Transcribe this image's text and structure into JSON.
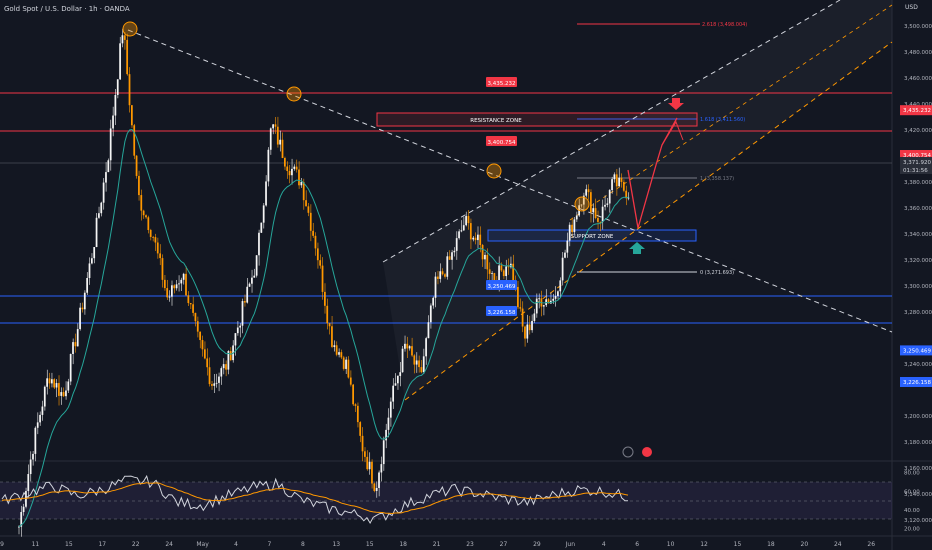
{
  "header": {
    "title": "Gold Spot / U.S. Dollar · 1h · OANDA",
    "currency": "USD"
  },
  "price_axis": {
    "ticks": [
      "3,500.000",
      "3,480.000",
      "3,460.000",
      "3,440.000",
      "3,420.000",
      "3,380.000",
      "3,360.000",
      "3,340.000",
      "3,320.000",
      "3,300.000",
      "3,280.000",
      "3,240.000",
      "3,200.000",
      "3,180.000",
      "3,160.000",
      "3,140.000",
      "3,120.000"
    ],
    "tick_values": [
      3500,
      3480,
      3460,
      3440,
      3420,
      3380,
      3360,
      3340,
      3320,
      3300,
      3280,
      3240,
      3200,
      3180,
      3160,
      3140,
      3120
    ],
    "badges": [
      {
        "text": "3,435.232",
        "value": 3435.232,
        "color": "#f23645"
      },
      {
        "text": "3,400.754",
        "value": 3400.754,
        "color": "#f23645"
      },
      {
        "text": "3,250.469",
        "value": 3250.469,
        "color": "#2962ff"
      },
      {
        "text": "3,226.158",
        "value": 3226.158,
        "color": "#2962ff"
      }
    ],
    "current": {
      "price": "3,371.920",
      "countdown": "01:31:56",
      "value": 3371.92
    }
  },
  "time_axis": {
    "labels": [
      "9",
      "11",
      "15",
      "17",
      "22",
      "24",
      "May",
      "4",
      "7",
      "8",
      "13",
      "15",
      "18",
      "21",
      "23",
      "27",
      "29",
      "Jun",
      "4",
      "6",
      "10",
      "12",
      "15",
      "18",
      "20",
      "24",
      "26"
    ]
  },
  "levels": [
    {
      "label": "3,435.232",
      "value": 3435.232,
      "color": "#f23645"
    },
    {
      "label": "3,400.754",
      "value": 3400.754,
      "color": "#f23645"
    },
    {
      "label": "3,250.469",
      "value": 3250.469,
      "color": "#2962ff"
    },
    {
      "label": "3,226.158",
      "value": 3226.158,
      "color": "#2962ff"
    }
  ],
  "zones": {
    "resistance": "RESISTANCE ZONE",
    "support": "SUPPORT ZONE"
  },
  "fib": {
    "top": "2.618 (3,498.004)",
    "ext": "1.618 (3,411.560)",
    "mid": "1 (3,358.137)",
    "zero": "0 (3,271.693)"
  },
  "rsi_axis": {
    "ticks": [
      "80.00",
      "60.00",
      "40.00",
      "20.00"
    ],
    "tick_values": [
      80,
      60,
      40,
      20
    ]
  },
  "chart_data": [
    {
      "type": "candlestick",
      "title": "Gold Spot / U.S. Dollar · 1h · OANDA",
      "y_unit": "USD",
      "ylim": [
        3100,
        3530
      ],
      "grid": false,
      "x_labels": [
        "9",
        "11",
        "15",
        "17",
        "22",
        "24",
        "May",
        "4",
        "7",
        "8",
        "13",
        "15",
        "18",
        "21",
        "23",
        "27",
        "29",
        "Jun",
        "4",
        "6",
        "10",
        "12",
        "15",
        "18",
        "20",
        "24",
        "26"
      ],
      "close_path_approx": [
        3115,
        3180,
        3232,
        3215,
        3270,
        3330,
        3400,
        3500,
        3370,
        3340,
        3290,
        3310,
        3260,
        3225,
        3240,
        3280,
        3320,
        3425,
        3395,
        3380,
        3330,
        3260,
        3240,
        3180,
        3145,
        3210,
        3255,
        3230,
        3300,
        3320,
        3350,
        3330,
        3305,
        3320,
        3260,
        3290,
        3290,
        3340,
        3375,
        3350,
        3380,
        3372
      ],
      "horizontal_levels": [
        3435.232,
        3400.754,
        3250.469,
        3226.158
      ],
      "current_price": 3371.92
    },
    {
      "type": "line",
      "title": "RSI",
      "ylim": [
        20,
        85
      ],
      "band": [
        30,
        70
      ],
      "series_approx": [
        50,
        58,
        66,
        55,
        62,
        72,
        70,
        48,
        45,
        55,
        64,
        68,
        50,
        42,
        36,
        30,
        44,
        55,
        62,
        58,
        52,
        48,
        56,
        62,
        60,
        54
      ]
    }
  ]
}
